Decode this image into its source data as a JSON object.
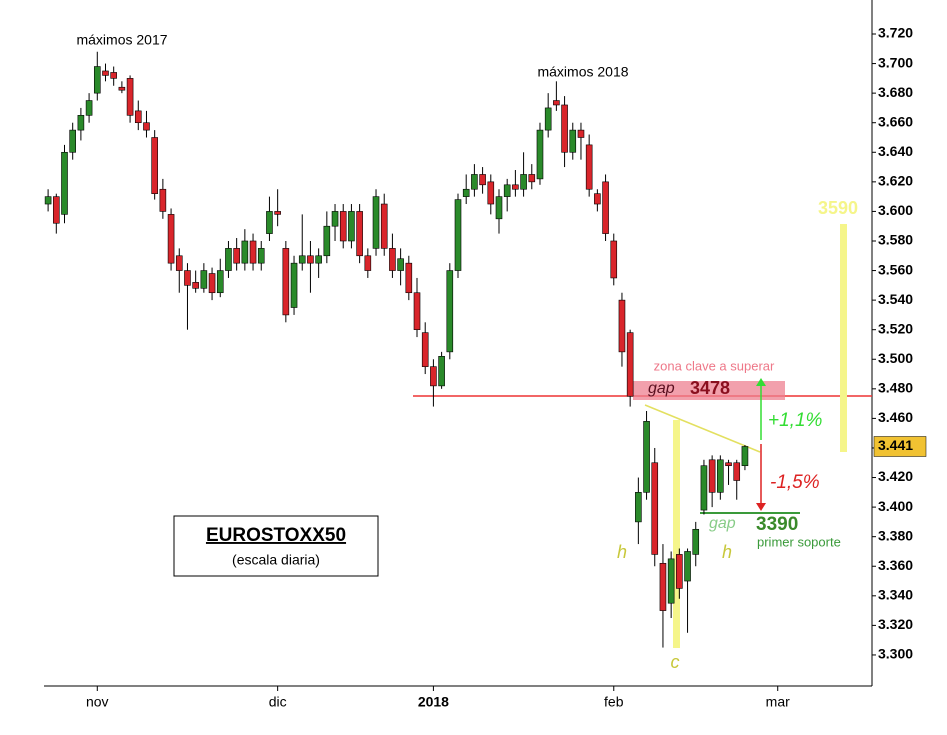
{
  "chart_data": {
    "type": "candlestick",
    "ylim": [
      3279,
      3743
    ],
    "yticks": [
      {
        "value": 3300,
        "label": "3.300"
      },
      {
        "value": 3320,
        "label": "3.320"
      },
      {
        "value": 3340,
        "label": "3.340"
      },
      {
        "value": 3360,
        "label": "3.360"
      },
      {
        "value": 3380,
        "label": "3.380"
      },
      {
        "value": 3400,
        "label": "3.400"
      },
      {
        "value": 3420,
        "label": "3.420"
      },
      {
        "value": 3440,
        "label": "3.440"
      },
      {
        "value": 3460,
        "label": "3.460"
      },
      {
        "value": 3480,
        "label": "3.480"
      },
      {
        "value": 3500,
        "label": "3.500"
      },
      {
        "value": 3520,
        "label": "3.520"
      },
      {
        "value": 3540,
        "label": "3.540"
      },
      {
        "value": 3560,
        "label": "3.560"
      },
      {
        "value": 3580,
        "label": "3.580"
      },
      {
        "value": 3600,
        "label": "3.600"
      },
      {
        "value": 3620,
        "label": "3.620"
      },
      {
        "value": 3640,
        "label": "3.640"
      },
      {
        "value": 3660,
        "label": "3.660"
      },
      {
        "value": 3680,
        "label": "3.680"
      },
      {
        "value": 3700,
        "label": "3.700"
      },
      {
        "value": 3720,
        "label": "3.720"
      }
    ],
    "xlim": [
      -0.5,
      100.5
    ],
    "xticks": [
      {
        "value": 6,
        "label": "nov"
      },
      {
        "value": 28,
        "label": "dic"
      },
      {
        "value": 47,
        "label": "2018"
      },
      {
        "value": 69,
        "label": "feb"
      },
      {
        "value": 89,
        "label": "mar"
      }
    ],
    "up_color": "#2a8a2a",
    "down_color": "#d9252b",
    "last_price": {
      "value": 3441,
      "label": "3.441"
    },
    "x": [
      0,
      1,
      2,
      3,
      4,
      5,
      6,
      7,
      8,
      9,
      10,
      11,
      12,
      13,
      14,
      15,
      16,
      17,
      18,
      19,
      20,
      21,
      22,
      23,
      24,
      25,
      26,
      27,
      28,
      29,
      30,
      31,
      32,
      33,
      34,
      35,
      36,
      37,
      38,
      39,
      40,
      41,
      42,
      43,
      44,
      45,
      46,
      47,
      48,
      49,
      50,
      51,
      52,
      53,
      54,
      55,
      56,
      57,
      58,
      59,
      60,
      61,
      62,
      63,
      64,
      65,
      66,
      67,
      68,
      69,
      70,
      71,
      72,
      73,
      74,
      75,
      76,
      77,
      78,
      79,
      80,
      81,
      82,
      83,
      84,
      85
    ],
    "open": [
      3605,
      3610,
      3598,
      3640,
      3655,
      3665,
      3680,
      3695,
      3694,
      3684,
      3690,
      3668,
      3660,
      3650,
      3615,
      3598,
      3570,
      3560,
      3552,
      3548,
      3558,
      3545,
      3560,
      3575,
      3565,
      3580,
      3565,
      3585,
      3600,
      3575,
      3535,
      3565,
      3570,
      3565,
      3570,
      3590,
      3600,
      3580,
      3600,
      3570,
      3575,
      3605,
      3575,
      3560,
      3565,
      3545,
      3518,
      3495,
      3482,
      3505,
      3560,
      3610,
      3615,
      3625,
      3620,
      3595,
      3610,
      3618,
      3615,
      3625,
      3622,
      3655,
      3675,
      3672,
      3640,
      3655,
      3645,
      3612,
      3620,
      3580,
      3540,
      3518,
      3390,
      3410,
      3430,
      3362,
      3335,
      3368,
      3350,
      3368,
      3398,
      3432,
      3410,
      3430,
      3430,
      3428
    ],
    "high": [
      3615,
      3612,
      3645,
      3660,
      3670,
      3680,
      3708,
      3700,
      3698,
      3688,
      3692,
      3675,
      3668,
      3655,
      3622,
      3602,
      3575,
      3565,
      3560,
      3565,
      3562,
      3568,
      3580,
      3582,
      3588,
      3585,
      3580,
      3610,
      3615,
      3580,
      3570,
      3598,
      3580,
      3575,
      3600,
      3605,
      3605,
      3605,
      3605,
      3575,
      3615,
      3612,
      3585,
      3575,
      3570,
      3555,
      3525,
      3500,
      3505,
      3565,
      3612,
      3625,
      3632,
      3630,
      3625,
      3615,
      3622,
      3628,
      3640,
      3632,
      3660,
      3680,
      3688,
      3678,
      3660,
      3660,
      3652,
      3615,
      3625,
      3585,
      3545,
      3520,
      3420,
      3465,
      3440,
      3375,
      3370,
      3372,
      3372,
      3390,
      3432,
      3435,
      3435,
      3432,
      3432,
      3442
    ],
    "low": [
      3600,
      3585,
      3592,
      3635,
      3648,
      3660,
      3675,
      3688,
      3685,
      3680,
      3660,
      3655,
      3650,
      3608,
      3595,
      3560,
      3545,
      3520,
      3545,
      3545,
      3540,
      3542,
      3555,
      3560,
      3560,
      3560,
      3560,
      3580,
      3590,
      3525,
      3530,
      3560,
      3545,
      3555,
      3565,
      3580,
      3575,
      3575,
      3565,
      3555,
      3570,
      3570,
      3555,
      3550,
      3540,
      3515,
      3490,
      3468,
      3480,
      3500,
      3555,
      3605,
      3610,
      3612,
      3598,
      3585,
      3600,
      3610,
      3610,
      3615,
      3618,
      3650,
      3668,
      3630,
      3635,
      3635,
      3610,
      3600,
      3580,
      3550,
      3495,
      3468,
      3375,
      3405,
      3360,
      3305,
      3325,
      3338,
      3315,
      3360,
      3395,
      3400,
      3405,
      3415,
      3405,
      3425
    ],
    "close": [
      3610,
      3592,
      3640,
      3655,
      3665,
      3675,
      3698,
      3692,
      3690,
      3682,
      3665,
      3660,
      3655,
      3612,
      3600,
      3565,
      3560,
      3550,
      3548,
      3560,
      3545,
      3560,
      3575,
      3565,
      3580,
      3565,
      3575,
      3600,
      3598,
      3530,
      3565,
      3570,
      3565,
      3570,
      3590,
      3600,
      3580,
      3600,
      3570,
      3560,
      3610,
      3575,
      3560,
      3568,
      3545,
      3520,
      3495,
      3482,
      3502,
      3560,
      3608,
      3615,
      3625,
      3618,
      3605,
      3610,
      3618,
      3615,
      3625,
      3620,
      3655,
      3670,
      3672,
      3640,
      3655,
      3650,
      3615,
      3605,
      3585,
      3555,
      3505,
      3475,
      3410,
      3458,
      3368,
      3330,
      3365,
      3345,
      3370,
      3385,
      3428,
      3410,
      3432,
      3428,
      3418,
      3441
    ],
    "annotations": [
      "máximos 2017",
      "máximos 2018",
      "zona clave a superar",
      "gap",
      "3478",
      "+1,1%",
      "-1,5%",
      "gap",
      "3390",
      "primer soporte",
      "h",
      "h",
      "c",
      "3590",
      "EUROSTOXX50",
      "(escala diaria)"
    ]
  }
}
